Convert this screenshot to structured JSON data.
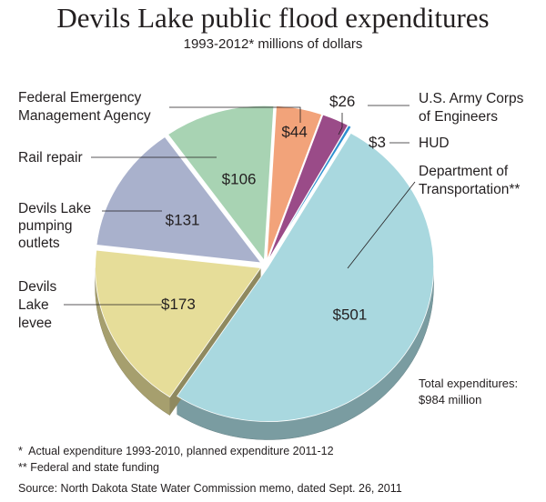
{
  "chart_data": {
    "type": "pie",
    "title": "Devils Lake public flood expenditures",
    "subtitle": "1993-2012* millions of dollars",
    "unit": "millions of dollars",
    "slices": [
      {
        "name": "Department of Transportation**",
        "label_lines": [
          "Department of",
          "Transportation**"
        ],
        "value": 501,
        "value_label": "$501",
        "color": "#a9d8df"
      },
      {
        "name": "Devils Lake levee",
        "label_lines": [
          "Devils",
          "Lake",
          "levee"
        ],
        "value": 173,
        "value_label": "$173",
        "color": "#e6dd99"
      },
      {
        "name": "Devils Lake pumping outlets",
        "label_lines": [
          "Devils Lake",
          "pumping",
          "outlets"
        ],
        "value": 131,
        "value_label": "$131",
        "color": "#a9b1cc"
      },
      {
        "name": "Rail repair",
        "label_lines": [
          "Rail repair"
        ],
        "value": 106,
        "value_label": "$106",
        "color": "#a8d3b3"
      },
      {
        "name": "Federal Emergency Management Agency",
        "label_lines": [
          "Federal Emergency",
          "Management Agency"
        ],
        "value": 44,
        "value_label": "$44",
        "color": "#f2a37a"
      },
      {
        "name": "U.S. Army Corps of Engineers",
        "label_lines": [
          "U.S. Army Corps",
          "of Engineers"
        ],
        "value": 26,
        "value_label": "$26",
        "color": "#9a4b88"
      },
      {
        "name": "HUD",
        "label_lines": [
          "HUD"
        ],
        "value": 3,
        "value_label": "$3",
        "color": "#2d8fcf"
      }
    ],
    "total_label_lines": [
      "Total expenditures:",
      "$984 million"
    ]
  },
  "footnotes": [
    "*  Actual expenditure 1993-2010, planned expenditure 2011-12",
    "** Federal and state funding"
  ],
  "source": "Source: North Dakota State Water Commission memo, dated Sept. 26, 2011"
}
